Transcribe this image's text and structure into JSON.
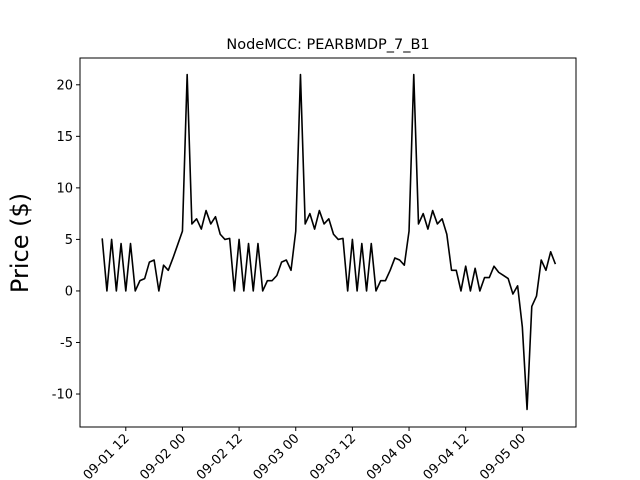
{
  "chart_data": {
    "type": "line",
    "title": "NodeMCC: PEARBMDP_7_B1",
    "ylabel": "Price ($)",
    "x": [
      "09-01 07",
      "09-01 08",
      "09-01 09",
      "09-01 10",
      "09-01 11",
      "09-01 12",
      "09-01 13",
      "09-01 14",
      "09-01 15",
      "09-01 16",
      "09-01 17",
      "09-01 18",
      "09-01 19",
      "09-01 20",
      "09-01 21",
      "09-01 22",
      "09-01 23",
      "09-02 00",
      "09-02 01",
      "09-02 02",
      "09-02 03",
      "09-02 04",
      "09-02 05",
      "09-02 06",
      "09-02 07",
      "09-02 08",
      "09-02 09",
      "09-02 10",
      "09-02 11",
      "09-02 12",
      "09-02 13",
      "09-02 14",
      "09-02 15",
      "09-02 16",
      "09-02 17",
      "09-02 18",
      "09-02 19",
      "09-02 20",
      "09-02 21",
      "09-02 22",
      "09-02 23",
      "09-03 00",
      "09-03 01",
      "09-03 02",
      "09-03 03",
      "09-03 04",
      "09-03 05",
      "09-03 06",
      "09-03 07",
      "09-03 08",
      "09-03 09",
      "09-03 10",
      "09-03 11",
      "09-03 12",
      "09-03 13",
      "09-03 14",
      "09-03 15",
      "09-03 16",
      "09-03 17",
      "09-03 18",
      "09-03 19",
      "09-03 20",
      "09-03 21",
      "09-03 22",
      "09-03 23",
      "09-04 00",
      "09-04 01",
      "09-04 02",
      "09-04 03",
      "09-04 04",
      "09-04 05",
      "09-04 06",
      "09-04 07",
      "09-04 08",
      "09-04 09",
      "09-04 10",
      "09-04 11",
      "09-04 12",
      "09-04 13",
      "09-04 14",
      "09-04 15",
      "09-04 16",
      "09-04 17",
      "09-04 18",
      "09-04 19",
      "09-04 20",
      "09-04 21",
      "09-04 22",
      "09-04 23",
      "09-05 00",
      "09-05 01",
      "09-05 02",
      "09-05 03",
      "09-05 04",
      "09-05 05",
      "09-05 06",
      "09-05 07"
    ],
    "series": [
      {
        "color": "#000000",
        "values": [
          5.1,
          0,
          5.0,
          0,
          4.6,
          0,
          4.6,
          0,
          1.0,
          1.2,
          2.8,
          3.0,
          0,
          2.5,
          2.0,
          3.2,
          4.5,
          5.8,
          21,
          6.5,
          7.0,
          6.0,
          7.8,
          6.5,
          7.2,
          5.5,
          5.0,
          5.1,
          0,
          5.0,
          0,
          4.6,
          0,
          4.6,
          0,
          1.0,
          1.0,
          1.5,
          2.8,
          3.0,
          2.0,
          5.8,
          21,
          6.5,
          7.5,
          6.0,
          7.8,
          6.5,
          7.0,
          5.5,
          5.0,
          5.1,
          0,
          5.0,
          0,
          4.6,
          0,
          4.6,
          0,
          1.0,
          1.0,
          2.0,
          3.2,
          3.0,
          2.5,
          5.8,
          21,
          6.5,
          7.5,
          6.0,
          7.8,
          6.5,
          7.0,
          5.5,
          2.0,
          2.0,
          0,
          2.4,
          0,
          2.2,
          0,
          1.3,
          1.3,
          2.4,
          1.8,
          1.5,
          1.2,
          -0.3,
          0.5,
          -3.5,
          -11.5,
          -1.5,
          -0.5,
          3.0,
          2.0,
          3.8,
          2.6
        ]
      }
    ],
    "xlim": [
      "09-01 02:18",
      "09-05 11:22"
    ],
    "xticks": [
      "09-01 12",
      "09-02 00",
      "09-02 12",
      "09-03 00",
      "09-03 12",
      "09-04 00",
      "09-04 12",
      "09-05 00"
    ],
    "ylim": [
      -13.2,
      22.6
    ],
    "yticks": [
      -10,
      -5,
      0,
      5,
      10,
      15,
      20
    ],
    "grid": false
  }
}
